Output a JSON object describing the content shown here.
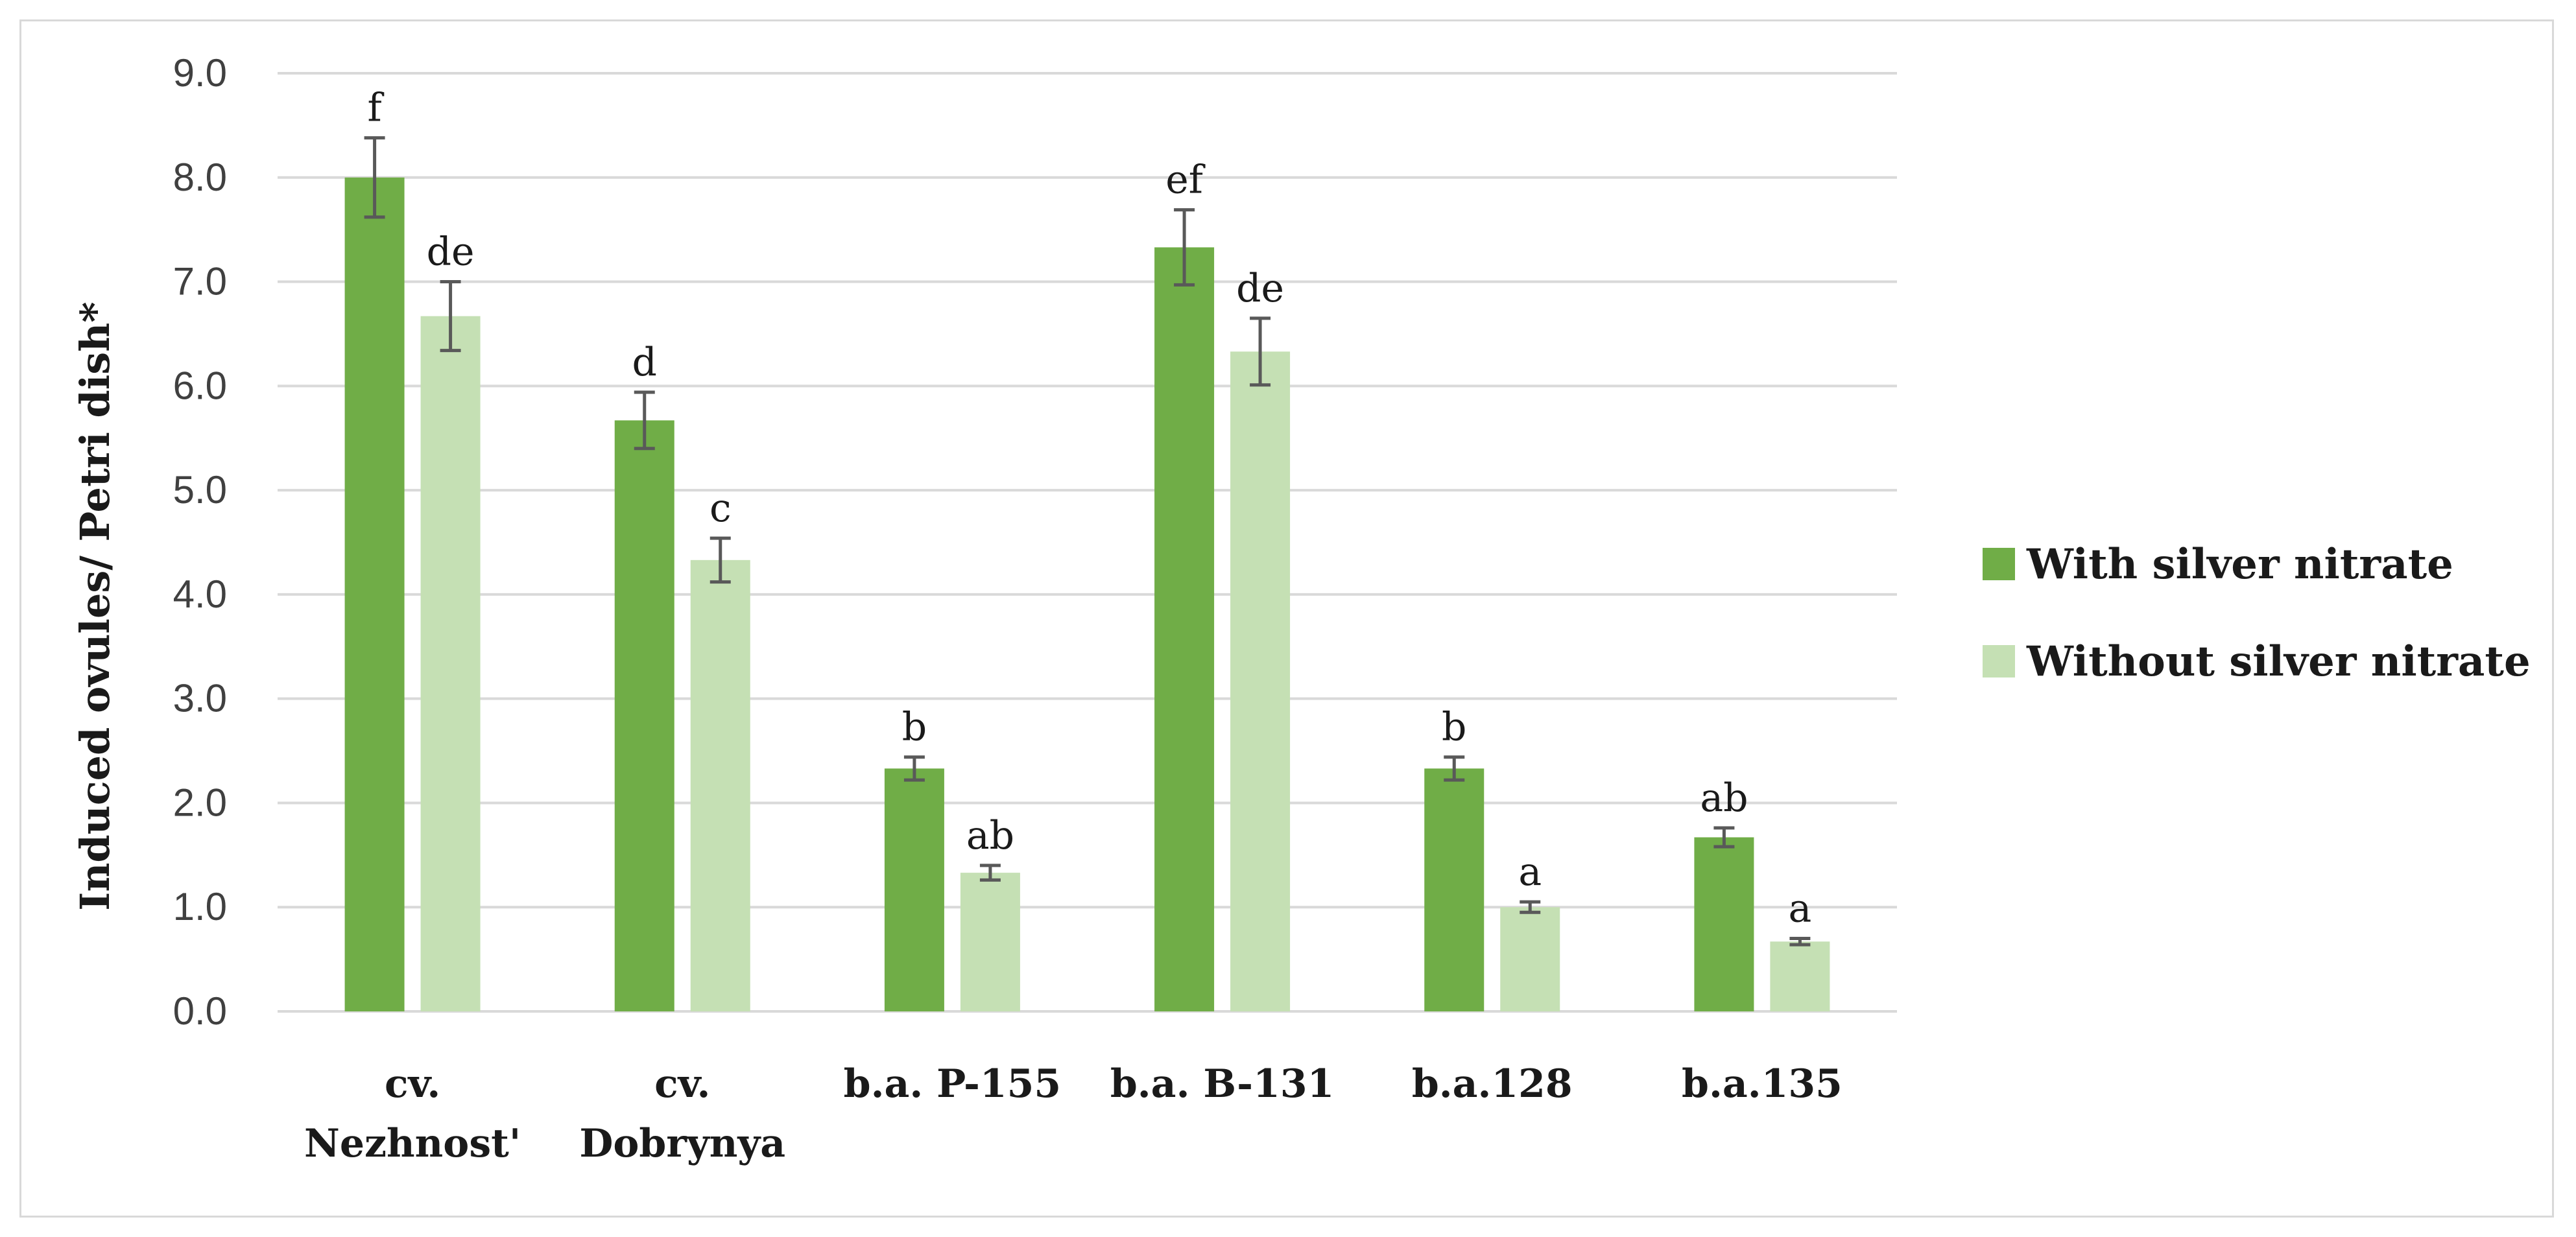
{
  "chart_data": {
    "type": "bar",
    "title": "",
    "xlabel": "",
    "ylabel": "Induced ovules/ Petri dish*",
    "ylim": [
      0,
      9
    ],
    "yticks": [
      "0.0",
      "1.0",
      "2.0",
      "3.0",
      "4.0",
      "5.0",
      "6.0",
      "7.0",
      "8.0",
      "9.0"
    ],
    "grid": true,
    "legend_position": "right",
    "categories": [
      [
        "cv.",
        "Nezhnost'"
      ],
      [
        "cv.",
        "Dobrynya"
      ],
      [
        "b.a. P-155"
      ],
      [
        "b.a. B-131"
      ],
      [
        "b.a.128"
      ],
      [
        "b.a.135"
      ]
    ],
    "series": [
      {
        "name": "With silver nitrate",
        "color": "#70ad47",
        "values": [
          8.0,
          5.67,
          2.33,
          7.33,
          2.33,
          1.67
        ],
        "errors": [
          0.38,
          0.27,
          0.11,
          0.36,
          0.11,
          0.09
        ],
        "labels": [
          "f",
          "d",
          "b",
          "ef",
          "b",
          "ab"
        ]
      },
      {
        "name": "Without silver nitrate",
        "color": "#c5e0b4",
        "values": [
          6.67,
          4.33,
          1.33,
          6.33,
          1.0,
          0.67
        ],
        "errors": [
          0.33,
          0.21,
          0.07,
          0.32,
          0.05,
          0.03
        ],
        "labels": [
          "de",
          "c",
          "ab",
          "de",
          "a",
          "a"
        ]
      }
    ]
  }
}
